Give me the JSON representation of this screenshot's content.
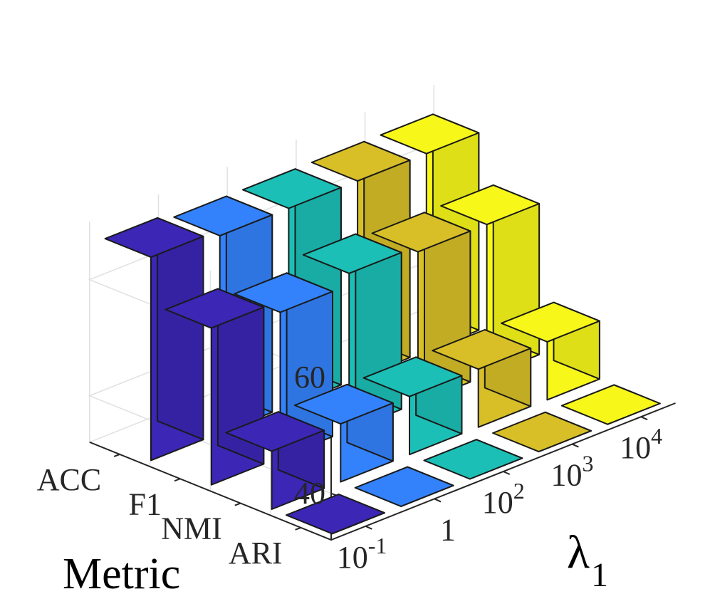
{
  "chart_data": {
    "type": "bar",
    "variant": "3d-grouped-bar",
    "title": "",
    "xlabel": "λ1",
    "xlabel_parts": {
      "symbol": "λ",
      "subscript": "1"
    },
    "ylabel": "Metric",
    "zlabel": "",
    "x_categories": [
      "10^-1",
      "1",
      "10^2",
      "10^3",
      "10^4"
    ],
    "x_tick_labels": [
      {
        "base": "10",
        "exp": "-1"
      },
      {
        "base": "1",
        "exp": ""
      },
      {
        "base": "10",
        "exp": "2"
      },
      {
        "base": "10",
        "exp": "3"
      },
      {
        "base": "10",
        "exp": "4"
      }
    ],
    "y_categories": [
      "ACC",
      "F1",
      "NMI",
      "ARI"
    ],
    "z_ticks": [
      40,
      60
    ],
    "zlim": [
      32,
      70
    ],
    "grid": true,
    "colors": [
      "#3b26b5",
      "#3382fb",
      "#1bbfb6",
      "#d8bf27",
      "#f7f81a"
    ],
    "series": [
      {
        "values": [
          67,
          59,
          42,
          32
        ]
      },
      {
        "values": [
          66,
          57,
          42,
          32
        ]
      },
      {
        "values": [
          66,
          59,
          42,
          32
        ]
      },
      {
        "values": [
          66,
          58,
          42,
          32
        ]
      },
      {
        "values": [
          66,
          58,
          42,
          32
        ]
      }
    ]
  }
}
